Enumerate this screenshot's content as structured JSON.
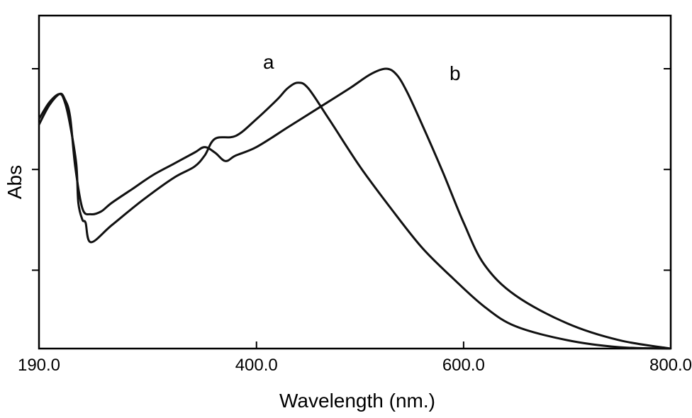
{
  "chart_data": {
    "type": "line",
    "title": "",
    "xlabel": "Wavelength (nm.)",
    "ylabel": "Abs",
    "xlim": [
      190,
      800
    ],
    "ylim": [
      0,
      1
    ],
    "x_ticks": [
      190,
      400,
      600,
      800
    ],
    "x_tick_labels": [
      "190.0",
      "400.0",
      "600.0",
      "800.0"
    ],
    "y_ticks": [
      0.28,
      0.64,
      1.0
    ],
    "grid": false,
    "legend": "none",
    "line_color": "#111111",
    "series": [
      {
        "name": "a",
        "x": [
          190,
          200,
          210,
          215,
          220,
          226,
          228,
          232,
          235,
          240,
          260,
          290,
          320,
          340,
          350,
          360,
          380,
          400,
          420,
          430,
          440,
          450,
          470,
          500,
          530,
          560,
          590,
          620,
          650,
          700,
          750,
          800
        ],
        "y": [
          0.82,
          0.88,
          0.91,
          0.88,
          0.8,
          0.66,
          0.52,
          0.46,
          0.45,
          0.38,
          0.44,
          0.53,
          0.61,
          0.65,
          0.69,
          0.75,
          0.76,
          0.82,
          0.89,
          0.93,
          0.95,
          0.93,
          0.82,
          0.65,
          0.5,
          0.36,
          0.25,
          0.15,
          0.08,
          0.03,
          0.005,
          0.0
        ]
      },
      {
        "name": "b",
        "x": [
          190,
          200,
          210,
          215,
          220,
          225,
          232,
          240,
          250,
          260,
          280,
          300,
          320,
          340,
          350,
          360,
          370,
          380,
          400,
          430,
          460,
          490,
          510,
          525,
          535,
          545,
          560,
          580,
          600,
          620,
          650,
          700,
          750,
          800
        ],
        "y": [
          0.8,
          0.87,
          0.91,
          0.89,
          0.83,
          0.65,
          0.5,
          0.48,
          0.49,
          0.52,
          0.57,
          0.62,
          0.66,
          0.7,
          0.72,
          0.7,
          0.67,
          0.69,
          0.72,
          0.79,
          0.86,
          0.93,
          0.98,
          1.0,
          0.98,
          0.92,
          0.8,
          0.63,
          0.45,
          0.3,
          0.19,
          0.09,
          0.03,
          0.0
        ]
      }
    ]
  }
}
